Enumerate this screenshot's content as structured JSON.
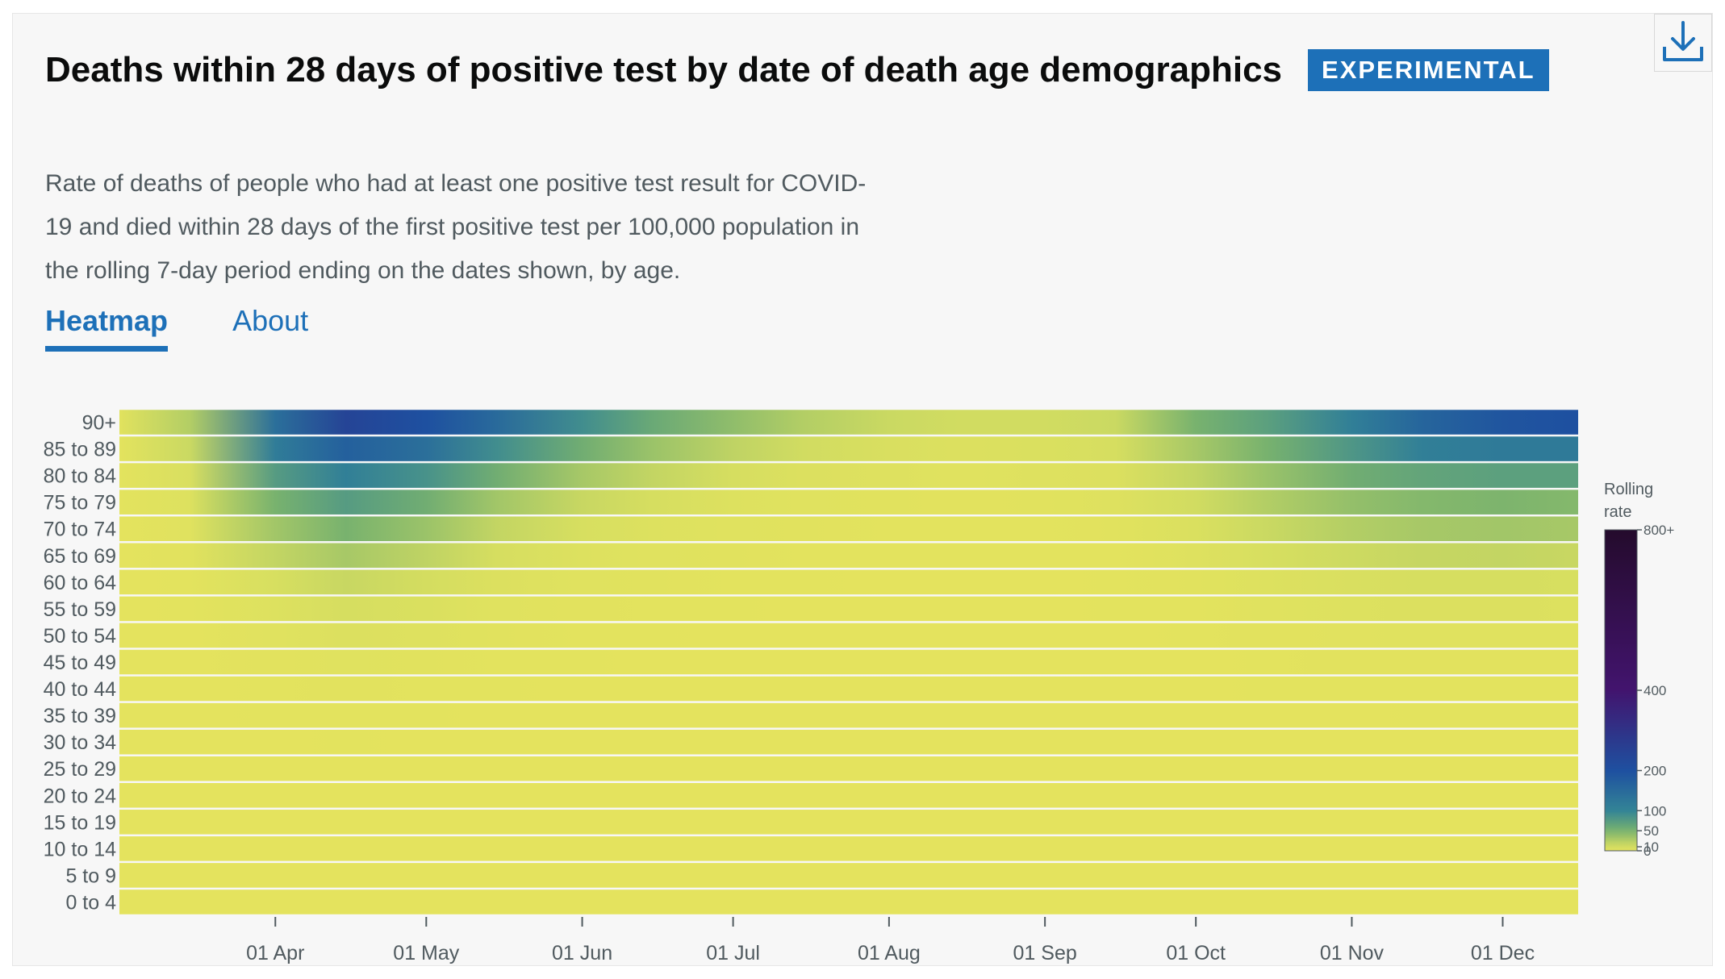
{
  "header": {
    "title": "Deaths within 28 days of positive test by date of death age demographics",
    "badge": "EXPERIMENTAL",
    "subtitle": "Rate of deaths of people who had at least one positive test result for COVID-19 and died within 28 days of the first positive test per 100,000 population in the rolling 7-day period ending on the dates shown, by age."
  },
  "icons": {
    "download": "download-icon"
  },
  "tabs": [
    {
      "label": "Heatmap",
      "active": true
    },
    {
      "label": "About",
      "active": false
    }
  ],
  "colors": {
    "accent": "#1d70b8",
    "scale_low": "#e4e35e",
    "scale_high": "#240b2c"
  },
  "legend": {
    "title_line1": "Rolling",
    "title_line2": "rate",
    "ticks": [
      "0",
      "10",
      "50",
      "100",
      "200",
      "400",
      "800+"
    ]
  },
  "chart_data": {
    "type": "heatmap",
    "title": "Deaths within 28 days of positive test by date of death age demographics",
    "color_label": "Rolling rate",
    "color_scale": [
      0,
      10,
      50,
      100,
      200,
      400,
      800
    ],
    "x_ticks": [
      "01 Apr",
      "01 May",
      "01 Jun",
      "01 Jul",
      "01 Aug",
      "01 Sep",
      "01 Oct",
      "01 Nov",
      "01 Dec"
    ],
    "y_categories": [
      "90+",
      "85 to 89",
      "80 to 84",
      "75 to 79",
      "70 to 74",
      "65 to 69",
      "60 to 64",
      "55 to 59",
      "50 to 54",
      "45 to 49",
      "40 to 44",
      "35 to 39",
      "30 to 34",
      "25 to 29",
      "20 to 24",
      "15 to 19",
      "10 to 14",
      "5 to 9",
      "0 to 4"
    ],
    "x": [
      "01 Mar",
      "15 Mar",
      "01 Apr",
      "15 Apr",
      "01 May",
      "15 May",
      "01 Jun",
      "15 Jun",
      "01 Jul",
      "15 Jul",
      "01 Aug",
      "15 Aug",
      "01 Sep",
      "15 Sep",
      "01 Oct",
      "15 Oct",
      "01 Nov",
      "15 Nov",
      "01 Dec",
      "15 Dec"
    ],
    "values": [
      [
        2,
        25,
        140,
        240,
        200,
        150,
        90,
        60,
        40,
        25,
        15,
        12,
        12,
        15,
        50,
        70,
        110,
        160,
        190,
        200
      ],
      [
        1,
        15,
        115,
        170,
        140,
        90,
        55,
        35,
        20,
        12,
        8,
        6,
        7,
        10,
        30,
        50,
        80,
        110,
        120,
        120
      ],
      [
        1,
        8,
        75,
        110,
        85,
        55,
        30,
        18,
        10,
        6,
        4,
        3,
        4,
        6,
        18,
        35,
        55,
        65,
        70,
        70
      ],
      [
        0.5,
        5,
        50,
        75,
        55,
        32,
        16,
        10,
        5,
        3,
        2,
        1.5,
        2,
        4,
        12,
        25,
        38,
        45,
        48,
        45
      ],
      [
        0.3,
        3,
        32,
        50,
        35,
        18,
        9,
        5,
        3,
        2,
        1,
        1,
        1,
        2,
        7,
        15,
        25,
        30,
        32,
        30
      ],
      [
        0.2,
        2,
        18,
        30,
        20,
        10,
        5,
        3,
        2,
        1,
        0.5,
        0.5,
        0.5,
        1,
        4,
        9,
        14,
        17,
        18,
        16
      ],
      [
        0.1,
        1,
        9,
        16,
        11,
        6,
        3,
        2,
        1,
        0.5,
        0.3,
        0.3,
        0.3,
        0.6,
        2,
        5,
        8,
        10,
        10,
        9
      ],
      [
        0.1,
        0.5,
        5,
        10,
        7,
        3,
        1.5,
        1,
        0.5,
        0.3,
        0.2,
        0.2,
        0.2,
        0.4,
        1,
        3,
        5,
        6,
        6,
        5
      ],
      [
        0,
        0.3,
        3,
        6,
        4,
        2,
        1,
        0.5,
        0.3,
        0.2,
        0.1,
        0.1,
        0.1,
        0.2,
        0.6,
        1.5,
        2.5,
        3,
        3,
        3
      ],
      [
        0,
        0.2,
        1.5,
        3,
        2,
        1,
        0.5,
        0.3,
        0.2,
        0.1,
        0.1,
        0.1,
        0.1,
        0.1,
        0.3,
        0.8,
        1.2,
        1.5,
        1.5,
        1.5
      ],
      [
        0,
        0.1,
        0.8,
        1.5,
        1,
        0.5,
        0.3,
        0.2,
        0.1,
        0,
        0,
        0,
        0,
        0.1,
        0.2,
        0.4,
        0.6,
        0.8,
        0.8,
        0.8
      ],
      [
        0,
        0,
        0.4,
        0.8,
        0.5,
        0.3,
        0.2,
        0.1,
        0,
        0,
        0,
        0,
        0,
        0,
        0.1,
        0.2,
        0.3,
        0.4,
        0.4,
        0.4
      ],
      [
        0,
        0,
        0.2,
        0.4,
        0.3,
        0.2,
        0.1,
        0,
        0,
        0,
        0,
        0,
        0,
        0,
        0.1,
        0.1,
        0.2,
        0.2,
        0.2,
        0.2
      ],
      [
        0,
        0,
        0.1,
        0.2,
        0.2,
        0.1,
        0,
        0,
        0,
        0,
        0,
        0,
        0,
        0,
        0,
        0.1,
        0.1,
        0.1,
        0.1,
        0.1
      ],
      [
        0,
        0,
        0.1,
        0.1,
        0.1,
        0,
        0,
        0,
        0,
        0,
        0,
        0,
        0,
        0,
        0,
        0,
        0.1,
        0.1,
        0.1,
        0.1
      ],
      [
        0,
        0,
        0,
        0.1,
        0,
        0,
        0,
        0,
        0,
        0,
        0,
        0,
        0,
        0,
        0,
        0,
        0,
        0,
        0,
        0
      ],
      [
        0,
        0,
        0,
        0,
        0,
        0,
        0,
        0,
        0,
        0,
        0,
        0,
        0,
        0,
        0,
        0,
        0,
        0,
        0,
        0
      ],
      [
        0,
        0,
        0,
        0,
        0,
        0,
        0,
        0,
        0,
        0,
        0,
        0,
        0,
        0,
        0,
        0,
        0,
        0,
        0,
        0
      ],
      [
        0,
        0,
        0,
        0.1,
        0,
        0,
        0,
        0,
        0,
        0,
        0,
        0,
        0,
        0,
        0,
        0,
        0,
        0,
        0,
        0
      ]
    ]
  }
}
